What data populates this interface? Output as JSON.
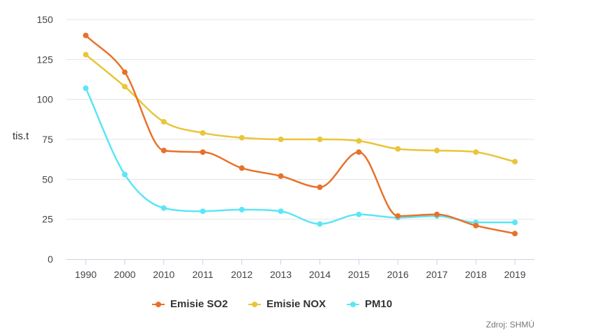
{
  "chart_data": {
    "type": "line",
    "categories": [
      "1990",
      "2000",
      "2010",
      "2011",
      "2012",
      "2013",
      "2014",
      "2015",
      "2016",
      "2017",
      "2018",
      "2019"
    ],
    "ylabel": "tis.t",
    "ylim": [
      0,
      150
    ],
    "yticks": [
      0,
      25,
      50,
      75,
      100,
      125,
      150
    ],
    "grid": true,
    "legend": "bottom-center",
    "series": [
      {
        "name": "Emisie SO2",
        "color": "#e8712a",
        "values": [
          140,
          117,
          68,
          67,
          57,
          52,
          45,
          67,
          27,
          28,
          21,
          16
        ]
      },
      {
        "name": "Emisie NOX",
        "color": "#e9c53a",
        "values": [
          128,
          108,
          86,
          79,
          76,
          75,
          75,
          74,
          69,
          68,
          67,
          61
        ]
      },
      {
        "name": "PM10",
        "color": "#5ce6f5",
        "values": [
          107,
          53,
          32,
          30,
          31,
          30,
          22,
          28,
          26,
          27,
          23,
          23
        ]
      }
    ]
  },
  "source_text": "Zdroj: SHMÚ"
}
